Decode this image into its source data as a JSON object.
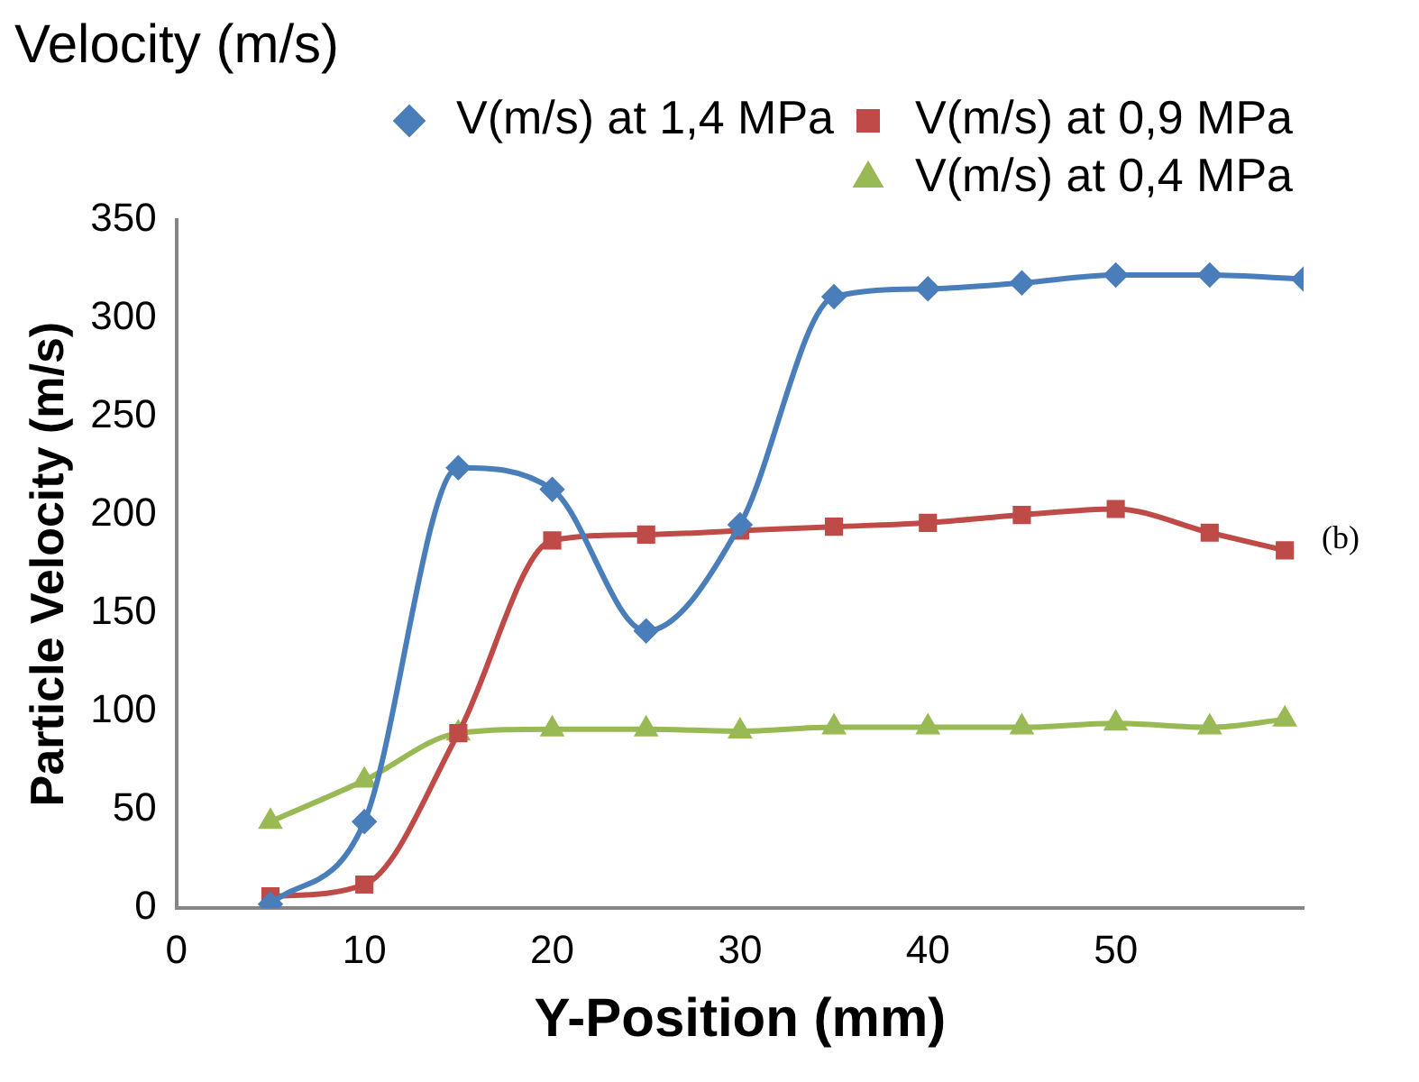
{
  "chart_data": {
    "type": "line",
    "title": "Velocity (m/s)",
    "xlabel": "Y-Position (mm)",
    "ylabel": "Particle Velocity (m/s)",
    "annotations": [
      "(b)"
    ],
    "xlim": [
      0,
      60
    ],
    "xticks": [
      0,
      10,
      20,
      30,
      40,
      50
    ],
    "ylim": [
      0,
      350
    ],
    "yticks": [
      0,
      50,
      100,
      150,
      200,
      250,
      300,
      350
    ],
    "grid": false,
    "legend": "top",
    "series": [
      {
        "name": "V(m/s) at 1,4 MPa",
        "color": "#4a7ebb",
        "marker": "diamond",
        "x": [
          5,
          10,
          15,
          20,
          25,
          30,
          35,
          40,
          45,
          50,
          55,
          60
        ],
        "values": [
          2,
          44,
          224,
          213,
          141,
          195,
          311,
          315,
          318,
          322,
          322,
          320
        ]
      },
      {
        "name": "V(m/s) at 0,9 MPa",
        "color": "#be4b48",
        "marker": "square",
        "x": [
          5,
          10,
          15,
          20,
          25,
          30,
          35,
          40,
          45,
          50,
          55,
          59
        ],
        "values": [
          6,
          12,
          89,
          187,
          190,
          192,
          194,
          196,
          200,
          203,
          191,
          182
        ]
      },
      {
        "name": "V(m/s) at 0,4 MPa",
        "color": "#98b954",
        "marker": "triangle",
        "x": [
          5,
          10,
          15,
          20,
          25,
          30,
          35,
          40,
          45,
          50,
          55,
          59
        ],
        "values": [
          44,
          65,
          89,
          91,
          91,
          90,
          92,
          92,
          92,
          94,
          92,
          96
        ]
      }
    ]
  }
}
